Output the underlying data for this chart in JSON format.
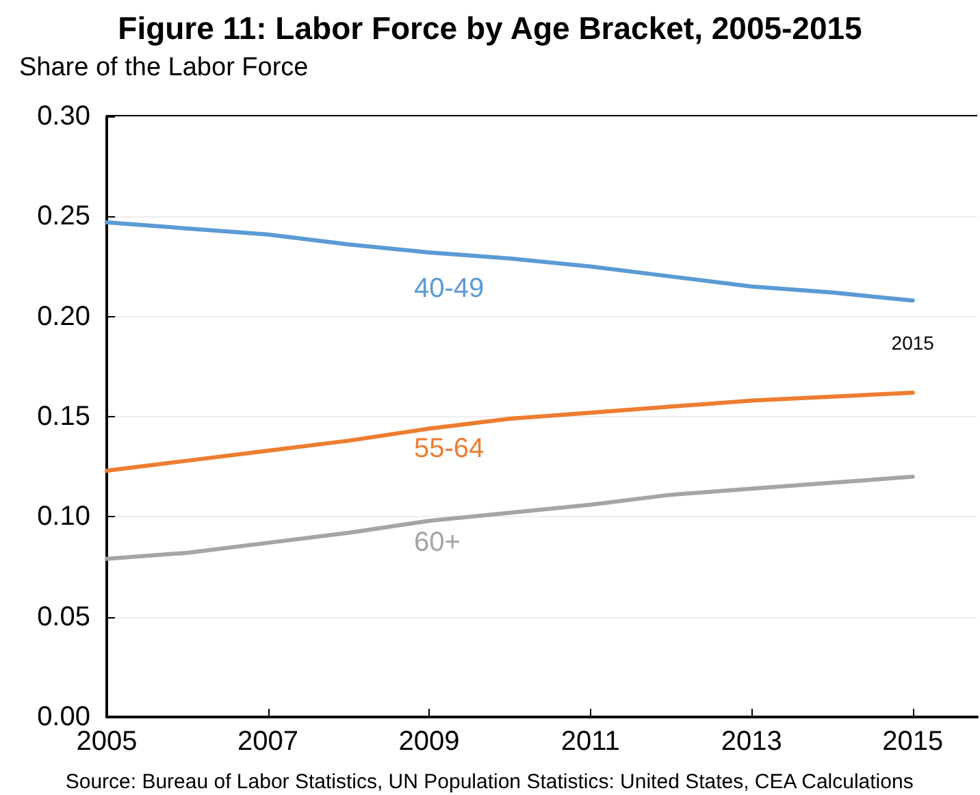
{
  "chart_data": {
    "type": "line",
    "title": "Figure 11: Labor Force by Age Bracket, 2005-2015",
    "ylabel": "Share of the Labor Force",
    "x": [
      2005,
      2006,
      2007,
      2008,
      2009,
      2010,
      2011,
      2012,
      2013,
      2014,
      2015
    ],
    "series": [
      {
        "name": "40-49",
        "color": "#5b9bd5",
        "values": [
          0.247,
          0.244,
          0.241,
          0.236,
          0.232,
          0.229,
          0.225,
          0.22,
          0.215,
          0.212,
          0.208
        ]
      },
      {
        "name": "55-64",
        "color": "#ed7d31",
        "values": [
          0.123,
          0.128,
          0.133,
          0.138,
          0.144,
          0.149,
          0.152,
          0.155,
          0.158,
          0.16,
          0.162
        ]
      },
      {
        "name": "60+",
        "color": "#a5a5a5",
        "values": [
          0.079,
          0.082,
          0.087,
          0.092,
          0.098,
          0.102,
          0.106,
          0.111,
          0.114,
          0.117,
          0.12
        ]
      }
    ],
    "xlim": [
      2005,
      2015.8
    ],
    "xticks": [
      2005,
      2007,
      2009,
      2011,
      2013,
      2015
    ],
    "ylim": [
      0,
      0.3
    ],
    "yticks": [
      {
        "value": 0,
        "label": "0.00"
      },
      0.05,
      {
        "value": 0.1,
        "label": "0.10"
      },
      0.15,
      {
        "value": 0.2,
        "label": "0.20"
      },
      0.25,
      {
        "value": 0.3,
        "label": "0.30"
      }
    ],
    "annotations": [
      {
        "text": "2015",
        "x": 2015,
        "y": 0.208
      },
      "Source: Bureau of Labor Statistics, UN Population Statistics: United States, CEA Calculations"
    ],
    "grid": "y",
    "legend": false,
    "marker": "none",
    "line_style": "solid"
  }
}
